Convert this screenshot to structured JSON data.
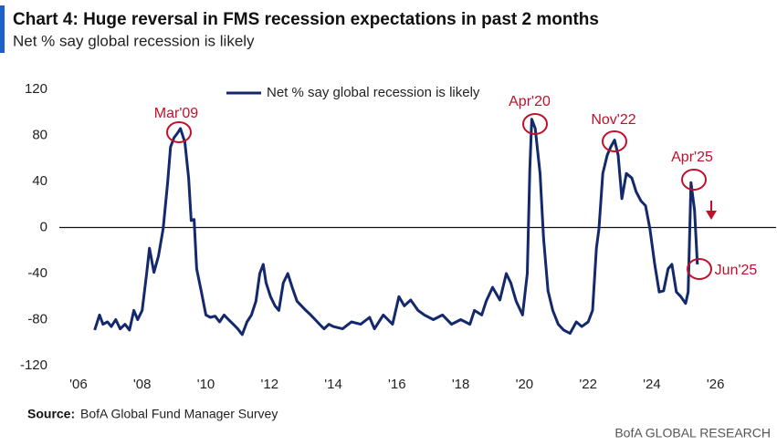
{
  "chart_data": {
    "type": "line",
    "title": "Chart 4: Huge reversal in FMS recession expectations in past 2 months",
    "subtitle": "Net % say global recession is likely",
    "source_label": "Source:",
    "source": "BofA Global Fund Manager Survey",
    "footer": "BofA GLOBAL RESEARCH",
    "annotations": [
      "Mar'09",
      "Apr'20",
      "Nov'22",
      "Apr'25",
      "Jun'25"
    ],
    "legend": "top-center",
    "zero_line": true,
    "xlim": [
      2005.4,
      2027.9
    ],
    "xticks": [
      {
        "value": 2006,
        "label": "'06"
      },
      {
        "value": 2008,
        "label": "'08"
      },
      {
        "value": 2010,
        "label": "'10"
      },
      {
        "value": 2012,
        "label": "'12"
      },
      {
        "value": 2014,
        "label": "'14"
      },
      {
        "value": 2016,
        "label": "'16"
      },
      {
        "value": 2018,
        "label": "'18"
      },
      {
        "value": 2020,
        "label": "'20"
      },
      {
        "value": 2022,
        "label": "'22"
      },
      {
        "value": 2024,
        "label": "'24"
      },
      {
        "value": 2026,
        "label": "'26"
      }
    ],
    "ylim": [
      -120,
      120
    ],
    "yticks": [
      120,
      80,
      40,
      0,
      -40,
      -80,
      -120
    ],
    "x": [
      2006.51,
      2006.66,
      2006.77,
      2006.91,
      2007.03,
      2007.17,
      2007.31,
      2007.46,
      2007.6,
      2007.74,
      2007.86,
      2008.0,
      2008.14,
      2008.23,
      2008.37,
      2008.51,
      2008.66,
      2008.8,
      2008.89,
      2009.0,
      2009.11,
      2009.2,
      2009.34,
      2009.46,
      2009.54,
      2009.63,
      2009.71,
      2009.86,
      2010.0,
      2010.14,
      2010.29,
      2010.43,
      2010.57,
      2010.71,
      2010.86,
      2011.0,
      2011.14,
      2011.29,
      2011.43,
      2011.57,
      2011.69,
      2011.8,
      2011.89,
      2012.03,
      2012.17,
      2012.29,
      2012.43,
      2012.57,
      2012.71,
      2012.86,
      2013.0,
      2013.14,
      2013.29,
      2013.43,
      2013.57,
      2013.71,
      2013.86,
      2014.0,
      2014.29,
      2014.57,
      2014.86,
      2015.14,
      2015.29,
      2015.57,
      2015.86,
      2016.06,
      2016.23,
      2016.43,
      2016.66,
      2016.86,
      2017.14,
      2017.43,
      2017.71,
      2018.0,
      2018.29,
      2018.43,
      2018.66,
      2018.8,
      2019.0,
      2019.23,
      2019.43,
      2019.57,
      2019.74,
      2019.94,
      2020.09,
      2020.17,
      2020.23,
      2020.34,
      2020.49,
      2020.6,
      2020.74,
      2020.89,
      2021.06,
      2021.23,
      2021.43,
      2021.63,
      2021.8,
      2022.0,
      2022.14,
      2022.26,
      2022.34,
      2022.46,
      2022.6,
      2022.71,
      2022.83,
      2022.94,
      2023.06,
      2023.2,
      2023.37,
      2023.51,
      2023.66,
      2023.8,
      2023.94,
      2024.09,
      2024.23,
      2024.37,
      2024.51,
      2024.63,
      2024.77,
      2024.91,
      2025.06,
      2025.14,
      2025.23,
      2025.34,
      2025.43
    ],
    "series": [
      {
        "name": "Net % say global recession is likely",
        "color": "#13296b",
        "values": [
          -89,
          -76,
          -84,
          -82,
          -86,
          -80,
          -88,
          -84,
          -89,
          -72,
          -80,
          -72,
          -40,
          -18,
          -39,
          -25,
          -1,
          39,
          70,
          78,
          82,
          86,
          74,
          43,
          6,
          7,
          -36,
          -56,
          -76,
          -78,
          -77,
          -82,
          -76,
          -80,
          -84,
          -88,
          -93,
          -82,
          -76,
          -64,
          -40,
          -32,
          -48,
          -60,
          -68,
          -72,
          -48,
          -40,
          -52,
          -64,
          -68,
          -72,
          -76,
          -80,
          -84,
          -88,
          -84,
          -86,
          -88,
          -82,
          -84,
          -78,
          -88,
          -76,
          -84,
          -60,
          -68,
          -63,
          -72,
          -76,
          -80,
          -76,
          -84,
          -80,
          -84,
          -72,
          -76,
          -64,
          -52,
          -63,
          -40,
          -48,
          -64,
          -76,
          -40,
          51,
          94,
          86,
          47,
          -9,
          -55,
          -72,
          -84,
          -89,
          -92,
          -82,
          -86,
          -82,
          -72,
          -18,
          -1,
          47,
          63,
          70,
          76,
          63,
          25,
          47,
          43,
          31,
          23,
          19,
          -1,
          -32,
          -56,
          -55,
          -36,
          -32,
          -56,
          -60,
          -66,
          -56,
          39,
          15,
          -32
        ]
      }
    ]
  }
}
